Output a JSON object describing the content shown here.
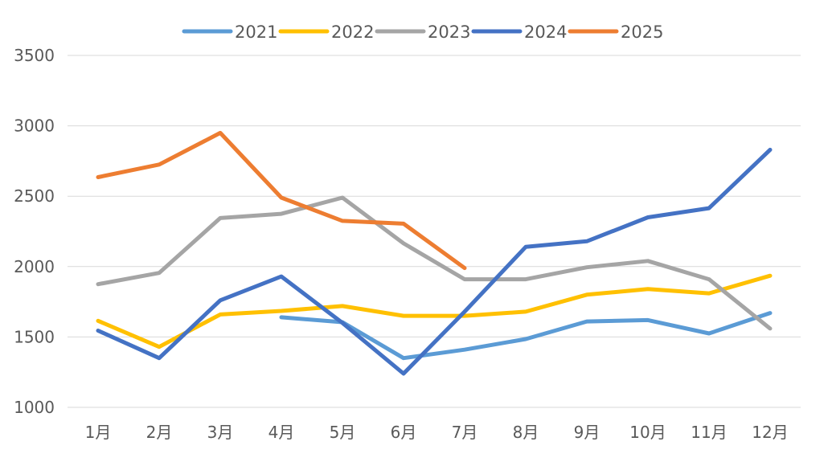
{
  "chart_data": {
    "type": "line",
    "title": "",
    "xlabel": "",
    "ylabel": "",
    "categories": [
      "1月",
      "2月",
      "3月",
      "4月",
      "5月",
      "6月",
      "7月",
      "8月",
      "9月",
      "10月",
      "11月",
      "12月"
    ],
    "ylim": [
      1000,
      3500
    ],
    "yticks": [
      1000,
      1500,
      2000,
      2500,
      3000,
      3500
    ],
    "grid": true,
    "legend_position": "top-center",
    "series": [
      {
        "name": "2021",
        "color": "#5B9BD5",
        "values": [
          null,
          null,
          null,
          1640,
          1605,
          1350,
          1410,
          1485,
          1610,
          1620,
          1525,
          1670
        ]
      },
      {
        "name": "2022",
        "color": "#FFC000",
        "values": [
          1615,
          1430,
          1660,
          1685,
          1720,
          1650,
          1650,
          1680,
          1800,
          1840,
          1810,
          1935
        ]
      },
      {
        "name": "2023",
        "color": "#A5A5A5",
        "values": [
          1875,
          1955,
          2345,
          2375,
          2490,
          2165,
          1910,
          1910,
          1995,
          2040,
          1910,
          1560
        ]
      },
      {
        "name": "2024",
        "color": "#4472C4",
        "values": [
          1545,
          1350,
          1760,
          1930,
          1600,
          1240,
          1680,
          2140,
          2180,
          2350,
          2415,
          2830
        ]
      },
      {
        "name": "2025",
        "color": "#ED7D31",
        "values": [
          2635,
          2725,
          2950,
          2490,
          2325,
          2305,
          1990,
          null,
          null,
          null,
          null,
          null
        ]
      }
    ]
  }
}
